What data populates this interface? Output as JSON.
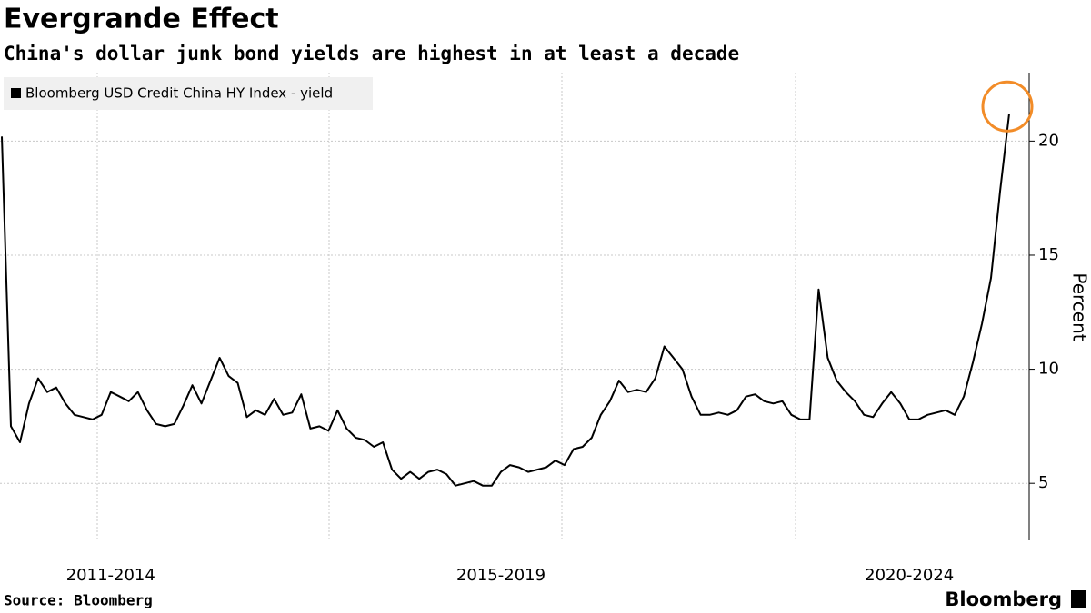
{
  "chart_data": {
    "type": "line",
    "title": "Evergrande Effect",
    "subtitle": "China's dollar junk bond yields are highest in at least a decade",
    "y_label": "Percent",
    "source": "Source: Bloomberg",
    "logo": "Bloomberg",
    "categories": [
      null,
      null,
      null,
      null,
      null,
      null,
      null,
      null,
      null,
      null,
      null,
      null,
      "2011-2014",
      null,
      null,
      null,
      null,
      null,
      null,
      null,
      null,
      null,
      null,
      null,
      null,
      null,
      null,
      null,
      null,
      null,
      null,
      null,
      null,
      null,
      null,
      null,
      null,
      null,
      null,
      null,
      null,
      null,
      null,
      null,
      null,
      null,
      null,
      null,
      null,
      null,
      null,
      null,
      null,
      null,
      null,
      "2015-2019",
      null,
      null,
      null,
      null,
      null,
      null,
      null,
      null,
      null,
      null,
      null,
      null,
      null,
      null,
      null,
      null,
      null,
      null,
      null,
      null,
      null,
      null,
      null,
      null,
      null,
      null,
      null,
      null,
      null,
      null,
      null,
      null,
      null,
      null,
      null,
      null,
      null,
      null,
      null,
      null,
      null,
      null,
      null,
      null,
      "2020-2024",
      null,
      null,
      null,
      null,
      null,
      null,
      null,
      null,
      null,
      null,
      null
    ],
    "series": [
      {
        "name": "Bloomberg USD Credit China HY Index - yield",
        "color": "#000000",
        "values": [
          20.2,
          7.5,
          6.8,
          8.5,
          9.6,
          9.0,
          9.2,
          8.5,
          8.0,
          7.9,
          7.8,
          8.0,
          9.0,
          8.8,
          8.6,
          9.0,
          8.2,
          7.6,
          7.5,
          7.6,
          8.4,
          9.3,
          8.5,
          9.5,
          10.5,
          9.7,
          9.4,
          7.9,
          8.2,
          8.0,
          8.7,
          8.0,
          8.1,
          8.9,
          7.4,
          7.5,
          7.3,
          8.2,
          7.4,
          7.0,
          6.9,
          6.6,
          6.8,
          5.6,
          5.2,
          5.5,
          5.2,
          5.5,
          5.6,
          5.4,
          4.9,
          5.0,
          5.1,
          4.9,
          4.9,
          5.5,
          5.8,
          5.7,
          5.5,
          5.6,
          5.7,
          6.0,
          5.8,
          6.5,
          6.6,
          7.0,
          8.0,
          8.6,
          9.5,
          9.0,
          9.1,
          9.0,
          9.6,
          11.0,
          10.5,
          10.0,
          8.8,
          8.0,
          8.0,
          8.1,
          8.0,
          8.2,
          8.8,
          8.9,
          8.6,
          8.5,
          8.6,
          8.0,
          7.8,
          7.8,
          13.5,
          10.5,
          9.5,
          9.0,
          8.6,
          8.0,
          7.9,
          8.5,
          9.0,
          8.5,
          7.8,
          7.8,
          8.0,
          8.1,
          8.2,
          8.0,
          8.8,
          10.3,
          12.0,
          14.0,
          17.8,
          21.2
        ]
      }
    ],
    "ylim": [
      2.5,
      23
    ],
    "yticks": [
      5,
      10,
      15,
      20
    ],
    "grid": true,
    "highlight_color": "#f28c28"
  }
}
